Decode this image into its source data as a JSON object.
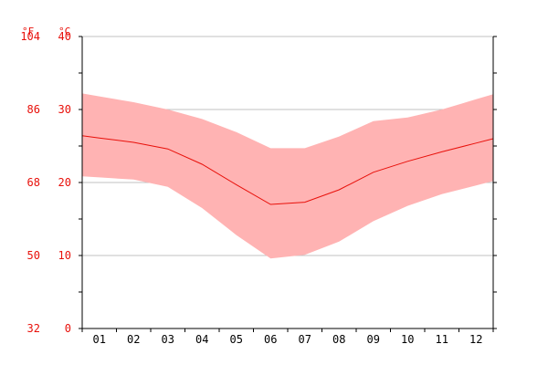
{
  "units": {
    "fahrenheit": "°F",
    "celsius": "°C"
  },
  "chart_data": {
    "type": "area",
    "title": "",
    "xlabel": "",
    "ylabel": "",
    "categories": [
      "01",
      "02",
      "03",
      "04",
      "05",
      "06",
      "07",
      "08",
      "09",
      "10",
      "11",
      "12"
    ],
    "x_ticks": [
      "01",
      "02",
      "03",
      "04",
      "05",
      "06",
      "07",
      "08",
      "09",
      "10",
      "11",
      "12"
    ],
    "y_ticks_celsius": [
      "0",
      "10",
      "20",
      "30",
      "40"
    ],
    "y_ticks_fahrenheit": [
      "32",
      "50",
      "68",
      "86",
      "104"
    ],
    "ylim": [
      0,
      40
    ],
    "grid": true,
    "series": [
      {
        "values": [
          31.8,
          31.0,
          30.0,
          28.7,
          26.9,
          24.7,
          24.7,
          26.3,
          28.4,
          28.9,
          30.0,
          31.4
        ]
      },
      {
        "values": [
          26.1,
          25.5,
          24.6,
          22.5,
          19.7,
          17.0,
          17.3,
          19.0,
          21.4,
          22.9,
          24.2,
          25.4
        ]
      },
      {
        "values": [
          20.7,
          20.4,
          19.4,
          16.5,
          12.8,
          9.6,
          10.1,
          11.9,
          14.7,
          16.8,
          18.4,
          19.6
        ]
      }
    ],
    "colors": {
      "band": "#ffb3b3",
      "line": "#e8100a",
      "axis_labels": "#e8100a"
    }
  }
}
